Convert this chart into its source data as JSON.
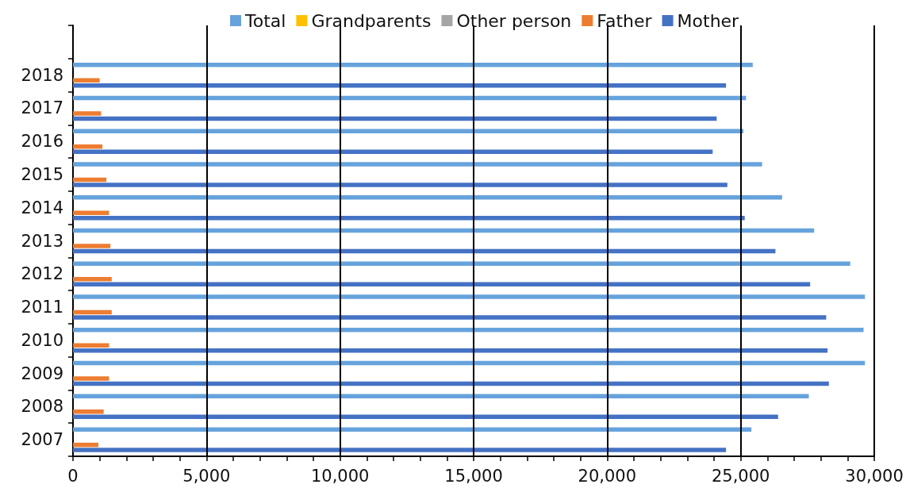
{
  "chart_data": {
    "type": "bar",
    "orientation": "horizontal",
    "categories": [
      null,
      "2018",
      "2017",
      "2016",
      "2015",
      "2014",
      "2013",
      "2012",
      "2011",
      "2010",
      "2009",
      "2008",
      "2007"
    ],
    "series": [
      {
        "name": "Total",
        "color": "#66a3dc",
        "values": [
          null,
          25450,
          25200,
          25100,
          25800,
          26550,
          27750,
          29100,
          29650,
          29600,
          29650,
          27550,
          25400
        ]
      },
      {
        "name": "Grandparents",
        "color": "#ffc000",
        "values": [
          null,
          0,
          0,
          0,
          0,
          0,
          0,
          0,
          0,
          0,
          0,
          0,
          0
        ]
      },
      {
        "name": "Other person",
        "color": "#a5a5a5",
        "values": [
          null,
          0,
          0,
          0,
          0,
          0,
          0,
          0,
          0,
          0,
          0,
          0,
          0
        ]
      },
      {
        "name": "Father",
        "color": "#ed7d31",
        "values": [
          null,
          1000,
          1050,
          1100,
          1250,
          1350,
          1400,
          1450,
          1450,
          1350,
          1350,
          1150,
          950
        ]
      },
      {
        "name": "Mother",
        "color": "#4472c4",
        "values": [
          null,
          24450,
          24100,
          23950,
          24500,
          25150,
          26300,
          27600,
          28200,
          28250,
          28300,
          26400,
          24450
        ]
      }
    ],
    "xlim": [
      0,
      30000
    ],
    "xticks": [
      0,
      {
        "value": 1000,
        "label": null
      },
      {
        "value": 2000,
        "label": null
      },
      {
        "value": 3000,
        "label": null
      },
      {
        "value": 4000,
        "label": null
      },
      {
        "value": 5000,
        "label": "5,000"
      },
      {
        "value": 6000,
        "label": null
      },
      {
        "value": 7000,
        "label": null
      },
      {
        "value": 8000,
        "label": null
      },
      {
        "value": 9000,
        "label": null
      },
      {
        "value": 10000,
        "label": "10,000"
      },
      {
        "value": 11000,
        "label": null
      },
      {
        "value": 12000,
        "label": null
      },
      {
        "value": 13000,
        "label": null
      },
      {
        "value": 14000,
        "label": null
      },
      {
        "value": 15000,
        "label": "15,000"
      },
      {
        "value": 16000,
        "label": null
      },
      {
        "value": 17000,
        "label": null
      },
      {
        "value": 18000,
        "label": null
      },
      {
        "value": 19000,
        "label": null
      },
      {
        "value": 20000,
        "label": "20,000"
      },
      {
        "value": 21000,
        "label": null
      },
      {
        "value": 22000,
        "label": null
      },
      {
        "value": 23000,
        "label": null
      },
      {
        "value": 24000,
        "label": null
      },
      {
        "value": 25000,
        "label": "25,000"
      },
      {
        "value": 26000,
        "label": null
      },
      {
        "value": 27000,
        "label": null
      },
      {
        "value": 28000,
        "label": null
      },
      {
        "value": 29000,
        "label": null
      },
      {
        "value": 30000,
        "label": "30,000"
      }
    ],
    "grid": "x",
    "legend": "top"
  }
}
